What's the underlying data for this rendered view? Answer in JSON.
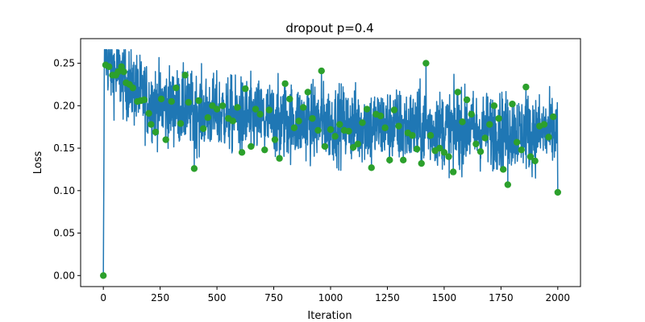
{
  "chart_data": {
    "type": "line",
    "title": "dropout p=0.4",
    "xlabel": "Iteration",
    "ylabel": "Loss",
    "xlim": [
      -100,
      2100
    ],
    "ylim": [
      -0.013,
      0.279
    ],
    "xticks": [
      0,
      250,
      500,
      750,
      1000,
      1250,
      1500,
      1750,
      2000
    ],
    "yticks": [
      0.0,
      0.05,
      0.1,
      0.15,
      0.2,
      0.25
    ],
    "xtick_labels": [
      "0",
      "250",
      "500",
      "750",
      "1000",
      "1250",
      "1500",
      "1750",
      "2000"
    ],
    "ytick_labels": [
      "0.00",
      "0.05",
      "0.10",
      "0.15",
      "0.20",
      "0.25"
    ],
    "grid": false,
    "colors": {
      "line": "#1f77b4",
      "points": "#2ca02c"
    },
    "series": [
      {
        "type": "line",
        "x_start": 0,
        "x_end": 2000,
        "trend": [
          [
            0,
            0.0
          ],
          [
            5,
            0.268
          ],
          [
            30,
            0.245
          ],
          [
            100,
            0.228
          ],
          [
            200,
            0.205
          ],
          [
            400,
            0.194
          ],
          [
            800,
            0.182
          ],
          [
            1200,
            0.177
          ],
          [
            1600,
            0.172
          ],
          [
            2000,
            0.168
          ]
        ],
        "spread": 0.04
      },
      {
        "type": "scatter",
        "points": [
          [
            0,
            0.0
          ],
          [
            10,
            0.248
          ],
          [
            25,
            0.246
          ],
          [
            40,
            0.236
          ],
          [
            55,
            0.236
          ],
          [
            65,
            0.24
          ],
          [
            80,
            0.246
          ],
          [
            90,
            0.24
          ],
          [
            100,
            0.227
          ],
          [
            115,
            0.225
          ],
          [
            130,
            0.221
          ],
          [
            150,
            0.205
          ],
          [
            165,
            0.206
          ],
          [
            180,
            0.207
          ],
          [
            200,
            0.191
          ],
          [
            210,
            0.178
          ],
          [
            230,
            0.169
          ],
          [
            255,
            0.208
          ],
          [
            275,
            0.16
          ],
          [
            300,
            0.205
          ],
          [
            320,
            0.221
          ],
          [
            340,
            0.179
          ],
          [
            360,
            0.236
          ],
          [
            375,
            0.204
          ],
          [
            400,
            0.126
          ],
          [
            420,
            0.206
          ],
          [
            440,
            0.173
          ],
          [
            460,
            0.186
          ],
          [
            480,
            0.2
          ],
          [
            500,
            0.196
          ],
          [
            525,
            0.2
          ],
          [
            550,
            0.185
          ],
          [
            570,
            0.182
          ],
          [
            590,
            0.198
          ],
          [
            610,
            0.145
          ],
          [
            625,
            0.22
          ],
          [
            650,
            0.152
          ],
          [
            670,
            0.196
          ],
          [
            690,
            0.19
          ],
          [
            710,
            0.148
          ],
          [
            730,
            0.195
          ],
          [
            755,
            0.16
          ],
          [
            775,
            0.138
          ],
          [
            800,
            0.226
          ],
          [
            820,
            0.208
          ],
          [
            840,
            0.174
          ],
          [
            860,
            0.182
          ],
          [
            880,
            0.198
          ],
          [
            900,
            0.216
          ],
          [
            920,
            0.185
          ],
          [
            945,
            0.171
          ],
          [
            960,
            0.241
          ],
          [
            975,
            0.152
          ],
          [
            1000,
            0.172
          ],
          [
            1020,
            0.164
          ],
          [
            1040,
            0.178
          ],
          [
            1060,
            0.171
          ],
          [
            1080,
            0.17
          ],
          [
            1100,
            0.151
          ],
          [
            1120,
            0.155
          ],
          [
            1140,
            0.18
          ],
          [
            1160,
            0.196
          ],
          [
            1180,
            0.127
          ],
          [
            1200,
            0.19
          ],
          [
            1220,
            0.188
          ],
          [
            1240,
            0.174
          ],
          [
            1260,
            0.136
          ],
          [
            1280,
            0.195
          ],
          [
            1300,
            0.176
          ],
          [
            1320,
            0.136
          ],
          [
            1340,
            0.168
          ],
          [
            1360,
            0.165
          ],
          [
            1380,
            0.149
          ],
          [
            1400,
            0.132
          ],
          [
            1420,
            0.25
          ],
          [
            1440,
            0.165
          ],
          [
            1460,
            0.147
          ],
          [
            1480,
            0.15
          ],
          [
            1500,
            0.145
          ],
          [
            1520,
            0.14
          ],
          [
            1540,
            0.122
          ],
          [
            1560,
            0.216
          ],
          [
            1580,
            0.181
          ],
          [
            1600,
            0.207
          ],
          [
            1620,
            0.19
          ],
          [
            1640,
            0.155
          ],
          [
            1660,
            0.146
          ],
          [
            1680,
            0.162
          ],
          [
            1700,
            0.178
          ],
          [
            1720,
            0.2
          ],
          [
            1740,
            0.185
          ],
          [
            1760,
            0.125
          ],
          [
            1780,
            0.107
          ],
          [
            1800,
            0.202
          ],
          [
            1820,
            0.157
          ],
          [
            1840,
            0.148
          ],
          [
            1860,
            0.222
          ],
          [
            1880,
            0.14
          ],
          [
            1900,
            0.135
          ],
          [
            1920,
            0.176
          ],
          [
            1940,
            0.178
          ],
          [
            1960,
            0.163
          ],
          [
            1980,
            0.187
          ],
          [
            2000,
            0.098
          ]
        ]
      }
    ]
  }
}
